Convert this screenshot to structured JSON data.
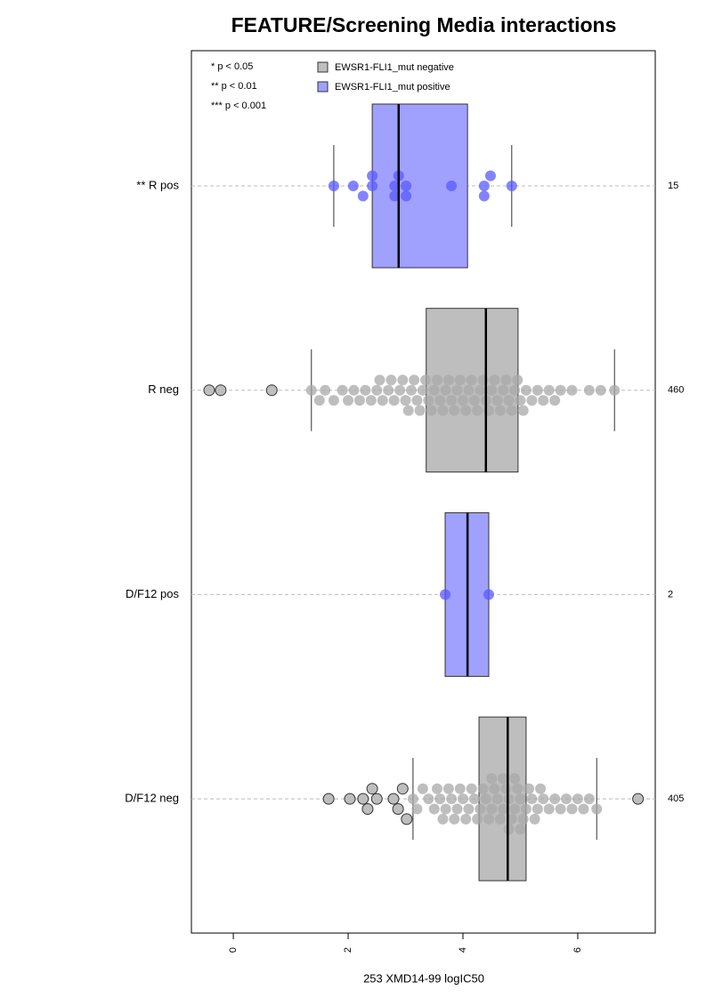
{
  "chart_data": {
    "type": "box",
    "title": "FEATURE/Screening Media interactions",
    "xlabel": "253 XMD14-99 logIC50",
    "annotations": [
      "* p < 0.05",
      "** p < 0.01",
      "*** p < 0.001"
    ],
    "series": [
      {
        "name": "EWSR1-FLI1_mut negative",
        "color": "#bebebe"
      },
      {
        "name": "EWSR1-FLI1_mut positive",
        "color": "#a0a0ff"
      }
    ],
    "categories": [
      "** R pos",
      "R neg",
      "D/F12 pos",
      "D/F12 neg"
    ],
    "counts": [
      15,
      460,
      2,
      405
    ],
    "xlim": [
      -0.73,
      7.35
    ],
    "xticks": [
      0,
      2,
      4,
      6
    ],
    "grid": true,
    "boxes": [
      {
        "color": "#a0a0ff",
        "point_color": "#5a5aff",
        "whisker_low": 1.75,
        "q1": 2.42,
        "median": 2.88,
        "q3": 4.08,
        "whisker_high": 4.85,
        "points": [
          1.75,
          2.09,
          2.26,
          2.42,
          2.42,
          2.81,
          2.81,
          2.88,
          3.01,
          3.01,
          3.8,
          4.37,
          4.37,
          4.48,
          4.85
        ],
        "outliers": []
      },
      {
        "color": "#bebebe",
        "point_color": "#a8a8a8",
        "whisker_low": 1.36,
        "q1": 3.36,
        "median": 4.4,
        "q3": 4.96,
        "whisker_high": 6.64,
        "points": [
          1.36,
          1.5,
          1.6,
          1.75,
          1.9,
          2.0,
          2.1,
          2.2,
          2.3,
          2.4,
          2.5,
          2.55,
          2.6,
          2.7,
          2.75,
          2.8,
          2.9,
          2.95,
          3.0,
          3.05,
          3.1,
          3.15,
          3.2,
          3.25,
          3.3,
          3.35,
          3.4,
          3.45,
          3.5,
          3.55,
          3.6,
          3.65,
          3.7,
          3.75,
          3.8,
          3.85,
          3.9,
          3.95,
          4.0,
          4.05,
          4.1,
          4.15,
          4.2,
          4.25,
          4.3,
          4.35,
          4.4,
          4.45,
          4.5,
          4.55,
          4.6,
          4.65,
          4.7,
          4.75,
          4.8,
          4.85,
          4.9,
          4.95,
          5.0,
          5.05,
          5.1,
          5.2,
          5.3,
          5.4,
          5.5,
          5.6,
          5.7,
          5.9,
          6.2,
          6.4,
          6.64
        ],
        "outliers": [
          -0.42,
          -0.22,
          0.67
        ]
      },
      {
        "color": "#a0a0ff",
        "point_color": "#5a5aff",
        "whisker_low": 3.69,
        "q1": 3.69,
        "median": 4.08,
        "q3": 4.45,
        "whisker_high": 4.45,
        "points": [
          3.69,
          4.45
        ],
        "outliers": []
      },
      {
        "color": "#bebebe",
        "point_color": "#a8a8a8",
        "whisker_low": 3.13,
        "q1": 4.28,
        "median": 4.78,
        "q3": 5.1,
        "whisker_high": 6.33,
        "points": [
          3.13,
          3.2,
          3.3,
          3.4,
          3.5,
          3.55,
          3.6,
          3.65,
          3.7,
          3.75,
          3.8,
          3.85,
          3.9,
          3.95,
          4.0,
          4.05,
          4.1,
          4.15,
          4.2,
          4.25,
          4.3,
          4.35,
          4.4,
          4.45,
          4.5,
          4.5,
          4.55,
          4.6,
          4.65,
          4.7,
          4.7,
          4.75,
          4.8,
          4.8,
          4.85,
          4.9,
          4.9,
          4.95,
          5.0,
          5.0,
          5.05,
          5.1,
          5.15,
          5.2,
          5.25,
          5.3,
          5.35,
          5.4,
          5.5,
          5.6,
          5.7,
          5.8,
          5.9,
          6.0,
          6.1,
          6.2,
          6.33
        ],
        "outliers": [
          1.66,
          2.03,
          2.26,
          2.34,
          2.42,
          2.5,
          2.79,
          2.87,
          2.95,
          3.02,
          7.05
        ]
      }
    ]
  }
}
